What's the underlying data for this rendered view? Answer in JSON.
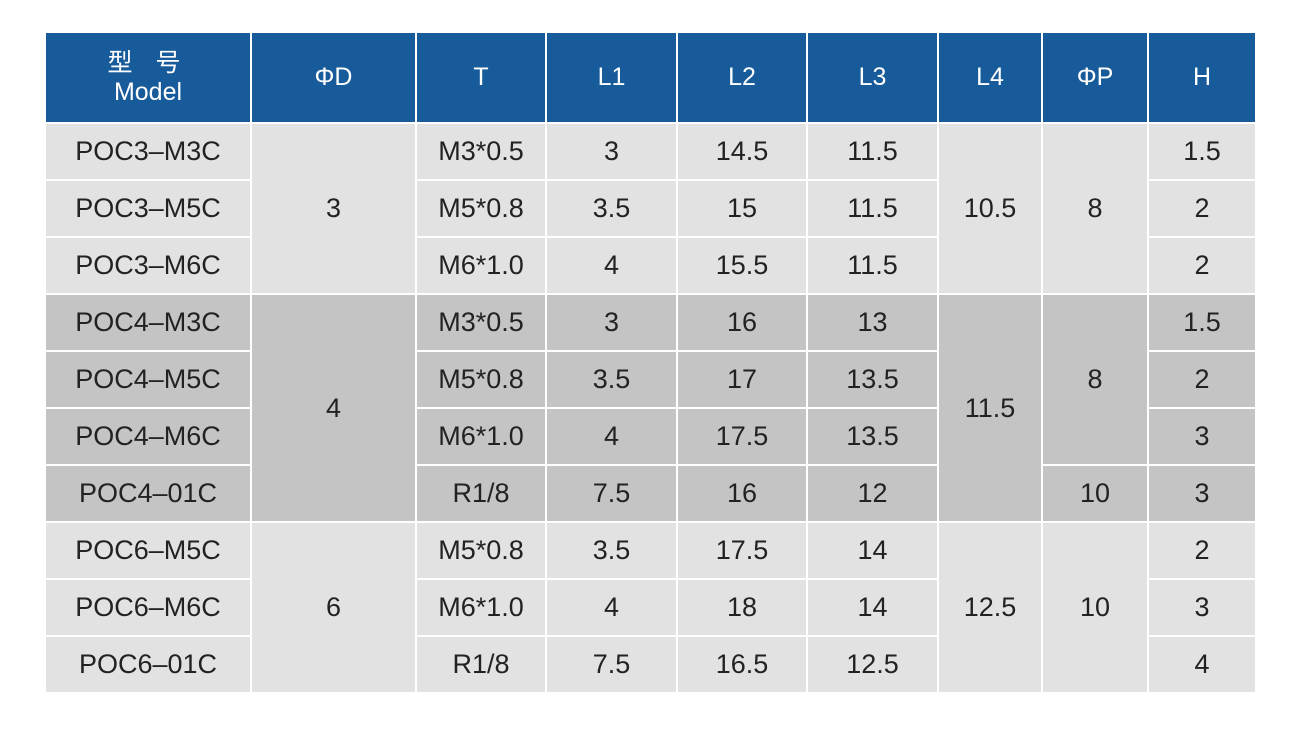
{
  "header": {
    "model_zh": "型 号",
    "model_en": "Model",
    "od": "ΦD",
    "t": "T",
    "l1": "L1",
    "l2": "L2",
    "l3": "L3",
    "l4": "L4",
    "op": "ΦP",
    "h": "H"
  },
  "rows": [
    {
      "model": "POC3–M3C",
      "d": "3",
      "t": "M3*0.5",
      "l1": "3",
      "l2": "14.5",
      "l3": "11.5",
      "l4": "10.5",
      "p": "8",
      "h": "1.5"
    },
    {
      "model": "POC3–M5C",
      "t": "M5*0.8",
      "l1": "3.5",
      "l2": "15",
      "l3": "11.5",
      "h": "2"
    },
    {
      "model": "POC3–M6C",
      "t": "M6*1.0",
      "l1": "4",
      "l2": "15.5",
      "l3": "11.5",
      "h": "2"
    },
    {
      "model": "POC4–M3C",
      "d": "4",
      "t": "M3*0.5",
      "l1": "3",
      "l2": "16",
      "l3": "13",
      "l4": "11.5",
      "p": "8",
      "h": "1.5"
    },
    {
      "model": "POC4–M5C",
      "t": "M5*0.8",
      "l1": "3.5",
      "l2": "17",
      "l3": "13.5",
      "h": "2"
    },
    {
      "model": "POC4–M6C",
      "t": "M6*1.0",
      "l1": "4",
      "l2": "17.5",
      "l3": "13.5",
      "h": "3"
    },
    {
      "model": "POC4–01C",
      "t": "R1/8",
      "l1": "7.5",
      "l2": "16",
      "l3": "12",
      "p": "10",
      "h": "3"
    },
    {
      "model": "POC6–M5C",
      "d": "6",
      "t": "M5*0.8",
      "l1": "3.5",
      "l2": "17.5",
      "l3": "14",
      "l4": "12.5",
      "p": "10",
      "h": "2"
    },
    {
      "model": "POC6–M6C",
      "t": "M6*1.0",
      "l1": "4",
      "l2": "18",
      "l3": "14",
      "h": "3"
    },
    {
      "model": "POC6–01C",
      "t": "R1/8",
      "l1": "7.5",
      "l2": "16.5",
      "l3": "12.5",
      "h": "4"
    }
  ],
  "colors": {
    "header_bg": "#175b9b",
    "header_text": "#ffffff",
    "group_light_bg": "#e2e2e2",
    "group_dark_bg": "#c4c4c4",
    "cell_text": "#222222"
  }
}
